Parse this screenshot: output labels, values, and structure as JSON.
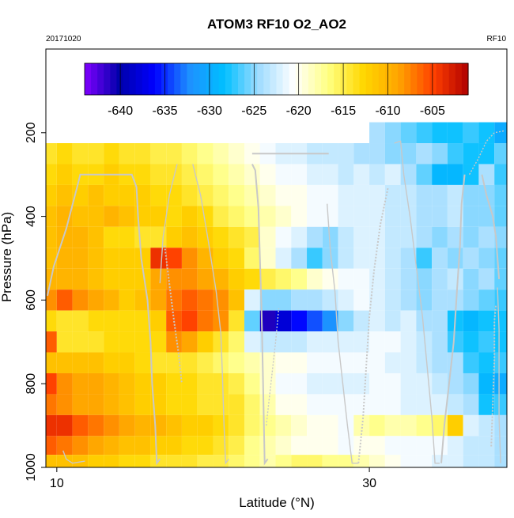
{
  "chart_data": {
    "type": "heatmap",
    "title": "ATOM3 RF10 O2_AO2",
    "subtitle_left": "20171020",
    "subtitle_right": "RF10",
    "xlabel": "Latitude (°N)",
    "ylabel": "Pressure (hPa)",
    "xlim": [
      9.3,
      38.8
    ],
    "ylim": [
      1000,
      0
    ],
    "x_ticks": [
      10,
      30
    ],
    "y_ticks": [
      200,
      400,
      600,
      800,
      1000
    ],
    "colorbar": {
      "vmin": -644,
      "vmax": -601,
      "tick_values": [
        -640,
        -635,
        -630,
        -625,
        -620,
        -615,
        -610,
        -605
      ],
      "tick_labels": [
        "-640",
        "-635",
        "-630",
        "-625",
        "-620",
        "-615",
        "-610",
        "-605"
      ],
      "colors": [
        "#8000ff",
        "#0000aa",
        "#0000ff",
        "#1e90ff",
        "#00bfff",
        "#a0dcff",
        "#ffffff",
        "#ffff80",
        "#ffd700",
        "#ffa500",
        "#ff4000",
        "#b00000"
      ]
    },
    "lat_bins": [
      9.5,
      10.5,
      11.5,
      12.5,
      13.5,
      14.5,
      15.5,
      16.5,
      17.5,
      18.5,
      19.5,
      20.5,
      21.5,
      22.5,
      23.5,
      24.5,
      25.5,
      26.5,
      27.5,
      28.5,
      29.5,
      30.5,
      31.5,
      32.5,
      33.5,
      34.5,
      35.5,
      36.5,
      37.5,
      38.5
    ],
    "pressure_bins": [
      200,
      250,
      300,
      350,
      400,
      450,
      500,
      550,
      600,
      650,
      700,
      750,
      800,
      850,
      900,
      950,
      990
    ],
    "grid": [
      [
        null,
        null,
        null,
        null,
        null,
        null,
        null,
        null,
        null,
        null,
        null,
        null,
        null,
        null,
        null,
        null,
        null,
        null,
        null,
        null,
        null,
        -624,
        -625,
        -626,
        -627,
        -628,
        -628,
        -627,
        -628,
        -630
      ],
      [
        -614,
        -613,
        -614,
        -614,
        -613,
        -614,
        -614,
        -615,
        -615,
        -616,
        -617,
        -618,
        -619,
        -620,
        -621,
        -622,
        -622,
        -623,
        -623,
        -623,
        -624,
        -624,
        -625,
        -625,
        -624,
        -625,
        -627,
        -628,
        -628,
        -626
      ],
      [
        -613,
        -612,
        -613,
        -613,
        -612,
        -613,
        -613,
        -614,
        -614,
        -615,
        -616,
        -617,
        -618,
        -619,
        -620,
        -621,
        -621,
        -622,
        -622,
        -623,
        -622,
        -623,
        -622,
        -624,
        -626,
        -629,
        -629,
        -628,
        -624,
        -627
      ],
      [
        -612,
        -611,
        -612,
        -611,
        -612,
        -612,
        -612,
        -613,
        -613,
        -614,
        -615,
        -616,
        -617,
        -618,
        -619,
        -620,
        -620,
        -621,
        -621,
        -622,
        -622,
        -622,
        -623,
        -623,
        -624,
        -624,
        -623,
        -625,
        -625,
        -626
      ],
      [
        -611,
        -610,
        -611,
        -611,
        -610,
        -611,
        -612,
        -612,
        -613,
        -612,
        -613,
        -615,
        -616,
        -617,
        -618,
        -619,
        -620,
        -621,
        -621,
        -622,
        -622,
        -622,
        -623,
        -623,
        -624,
        -624,
        -623,
        -625,
        -625,
        -626
      ],
      [
        -611,
        -610,
        -610,
        -611,
        -613,
        -613,
        -614,
        -614,
        -612,
        -611,
        -612,
        -613,
        -614,
        -615,
        -619,
        -621,
        -622,
        -624,
        -625,
        -623,
        -622,
        -622,
        -623,
        -623,
        -624,
        -625,
        -624,
        -625,
        -624,
        -625
      ],
      [
        -611,
        -610,
        -610,
        -611,
        -612,
        -612,
        -612,
        -604,
        -605,
        -608,
        -610,
        -612,
        -613,
        -616,
        -619,
        -622,
        -624,
        -627,
        -625,
        -623,
        -622,
        -622,
        -623,
        -624,
        -627,
        -624,
        -625,
        -624,
        -625,
        -626
      ],
      [
        -610,
        -610,
        -610,
        -611,
        -612,
        -612,
        -612,
        -609,
        -608,
        -608,
        -609,
        -610,
        -612,
        -613,
        -615,
        -616,
        -617,
        -619,
        -620,
        -621,
        -621,
        -622,
        -623,
        -624,
        -625,
        -624,
        -623,
        -625,
        -624,
        -626
      ],
      [
        -608,
        -606,
        -608,
        -609,
        -610,
        -612,
        -611,
        -609,
        -607,
        -606,
        -607,
        -608,
        -611,
        -622,
        -625,
        -625,
        -624,
        -624,
        -623,
        -622,
        -621,
        -622,
        -623,
        -624,
        -625,
        -624,
        -624,
        -625,
        -626,
        -627
      ],
      [
        -613,
        -614,
        -614,
        -613,
        -613,
        -613,
        -613,
        -612,
        -606,
        -605,
        -607,
        -608,
        -614,
        -626,
        -641,
        -638,
        -636,
        -634,
        -632,
        -625,
        -623,
        -622,
        -623,
        -622,
        -624,
        -624,
        -628,
        -629,
        -628,
        -628
      ],
      [
        -606,
        -614,
        -614,
        -614,
        -613,
        -613,
        -613,
        -613,
        -608,
        -609,
        -612,
        -614,
        -616,
        -622,
        -623,
        -623,
        -623,
        -622,
        -622,
        -622,
        -622,
        -621,
        -621,
        -622,
        -623,
        -624,
        -627,
        -628,
        -627,
        -628
      ],
      [
        -611,
        -611,
        -611,
        -611,
        -612,
        -612,
        -613,
        -614,
        -614,
        -614,
        -615,
        -616,
        -617,
        -618,
        -619,
        -620,
        -620,
        -621,
        -621,
        -621,
        -621,
        -621,
        -622,
        -622,
        -623,
        -624,
        -624,
        -627,
        -628,
        -627
      ],
      [
        -605,
        -608,
        -609,
        -609,
        -610,
        -611,
        -612,
        -612,
        -613,
        -613,
        -614,
        -614,
        -615,
        -617,
        -619,
        -621,
        -621,
        -622,
        -622,
        -622,
        -622,
        -621,
        -621,
        -622,
        -622,
        -623,
        -624,
        -625,
        -629,
        -630
      ],
      [
        -607,
        -608,
        -609,
        -609,
        -610,
        -611,
        -612,
        -612,
        -613,
        -613,
        -614,
        -614,
        -614,
        -616,
        -618,
        -620,
        -620,
        -621,
        -621,
        -621,
        -621,
        -621,
        -621,
        -622,
        -622,
        -622,
        -623,
        -624,
        -628,
        -627
      ],
      [
        -604,
        -604,
        -606,
        -607,
        -608,
        -609,
        -610,
        -610,
        -611,
        -612,
        -612,
        -613,
        -614,
        -616,
        -617,
        -618,
        -619,
        -620,
        -620,
        -621,
        -618,
        -617,
        -618,
        -618,
        -617,
        -616,
        -612,
        -622,
        -623,
        -624
      ],
      [
        -606,
        -607,
        -608,
        -609,
        -610,
        -611,
        -611,
        -612,
        -612,
        -613,
        -613,
        -614,
        -615,
        -617,
        -618,
        -619,
        -620,
        -620,
        -620,
        -621,
        -620,
        -620,
        -621,
        -621,
        -621,
        -621,
        -622,
        -623,
        -623,
        -624
      ],
      [
        -611,
        -611,
        -611,
        -612,
        -612,
        -613,
        -613,
        -614,
        -614,
        -614,
        -615,
        -615,
        -616,
        -617,
        -618,
        -617,
        -616,
        -616,
        -617,
        -617,
        -618,
        -619,
        -620,
        -621,
        -621,
        -622,
        -622,
        -623,
        -623,
        -624
      ]
    ],
    "flight_track": [
      [
        [
          9.4,
          590
        ],
        [
          9.8,
          520
        ],
        [
          10.6,
          430
        ],
        [
          11.3,
          330
        ],
        [
          11.5,
          300
        ],
        [
          12.5,
          300
        ],
        [
          13.5,
          300
        ],
        [
          14.8,
          300
        ],
        [
          15.1,
          330
        ],
        [
          15.2,
          400
        ],
        [
          15.4,
          500
        ],
        [
          15.8,
          600
        ],
        [
          16.0,
          700
        ],
        [
          16.1,
          800
        ],
        [
          16.3,
          900
        ],
        [
          16.4,
          990
        ],
        [
          16.6,
          980
        ]
      ],
      [
        [
          16.6,
          560
        ],
        [
          16.8,
          450
        ],
        [
          17.2,
          350
        ],
        [
          17.7,
          275
        ]
      ],
      [
        [
          16.9,
          470
        ],
        [
          17.2,
          560
        ],
        [
          17.5,
          650
        ],
        [
          17.8,
          730
        ],
        [
          18.0,
          800
        ]
      ],
      [
        [
          18.7,
          275
        ],
        [
          19.2,
          350
        ],
        [
          19.7,
          460
        ],
        [
          20.2,
          580
        ],
        [
          20.5,
          680
        ],
        [
          20.6,
          780
        ],
        [
          20.7,
          900
        ],
        [
          20.8,
          990
        ],
        [
          21.0,
          980
        ]
      ],
      [
        [
          22.5,
          275
        ],
        [
          22.7,
          290
        ],
        [
          22.9,
          380
        ],
        [
          23.0,
          500
        ],
        [
          23.1,
          620
        ],
        [
          23.2,
          800
        ],
        [
          23.3,
          990
        ],
        [
          23.5,
          980
        ]
      ],
      [
        [
          23.4,
          900
        ],
        [
          23.7,
          800
        ],
        [
          24.0,
          700
        ],
        [
          24.2,
          620
        ]
      ],
      [
        [
          22.5,
          250
        ],
        [
          24.0,
          250
        ],
        [
          26.0,
          250
        ],
        [
          27.4,
          250
        ]
      ],
      [
        [
          27.3,
          370
        ],
        [
          27.5,
          480
        ],
        [
          27.8,
          580
        ],
        [
          28.0,
          700
        ],
        [
          28.3,
          800
        ],
        [
          28.6,
          900
        ],
        [
          28.9,
          990
        ],
        [
          29.3,
          990
        ]
      ],
      [
        [
          29.3,
          990
        ],
        [
          29.6,
          880
        ],
        [
          29.8,
          760
        ],
        [
          30.0,
          640
        ],
        [
          30.3,
          530
        ],
        [
          30.7,
          420
        ],
        [
          31.2,
          330
        ]
      ],
      [
        [
          31.6,
          225
        ],
        [
          32.0,
          220
        ],
        [
          32.2,
          300
        ],
        [
          32.6,
          400
        ],
        [
          33.0,
          520
        ],
        [
          33.4,
          640
        ],
        [
          33.7,
          760
        ],
        [
          34.0,
          880
        ],
        [
          34.2,
          990
        ],
        [
          34.5,
          990
        ]
      ],
      [
        [
          34.6,
          990
        ],
        [
          34.8,
          900
        ],
        [
          35.1,
          800
        ],
        [
          35.4,
          700
        ],
        [
          35.6,
          580
        ],
        [
          35.8,
          470
        ],
        [
          35.9,
          370
        ],
        [
          36.1,
          300
        ]
      ],
      [
        [
          36.4,
          300
        ],
        [
          37.0,
          260
        ],
        [
          37.5,
          220
        ],
        [
          38.0,
          200
        ],
        [
          38.7,
          195
        ]
      ],
      [
        [
          37.2,
          300
        ],
        [
          37.5,
          350
        ],
        [
          37.9,
          400
        ],
        [
          38.1,
          450
        ],
        [
          38.3,
          550
        ]
      ],
      [
        [
          38.2,
          570
        ],
        [
          38.3,
          670
        ],
        [
          38.3,
          770
        ],
        [
          38.3,
          880
        ],
        [
          38.4,
          990
        ]
      ],
      [
        [
          37.8,
          950
        ],
        [
          37.9,
          850
        ],
        [
          38.0,
          740
        ],
        [
          38.0,
          650
        ],
        [
          38.1,
          610
        ]
      ],
      [
        [
          10.4,
          960
        ],
        [
          10.6,
          980
        ],
        [
          11.0,
          990
        ],
        [
          11.8,
          985
        ]
      ]
    ]
  }
}
